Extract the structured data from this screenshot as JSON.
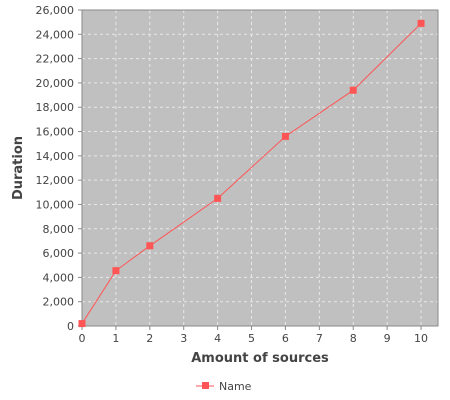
{
  "chart_data": {
    "type": "line",
    "title": "",
    "xlabel": "Amount of sources",
    "ylabel": "Duration",
    "xlim": [
      0,
      10.5
    ],
    "ylim": [
      0,
      26000
    ],
    "x_ticks": [
      0,
      1,
      2,
      3,
      4,
      5,
      6,
      7,
      8,
      9,
      10
    ],
    "y_ticks": [
      0,
      2000,
      4000,
      6000,
      8000,
      10000,
      12000,
      14000,
      16000,
      18000,
      20000,
      22000,
      24000,
      26000
    ],
    "x_tick_labels": [
      "0",
      "1",
      "2",
      "3",
      "4",
      "5",
      "6",
      "7",
      "8",
      "9",
      "10"
    ],
    "y_tick_labels": [
      "0",
      "2,000",
      "4,000",
      "6,000",
      "8,000",
      "10,000",
      "12,000",
      "14,000",
      "16,000",
      "18,000",
      "20,000",
      "22,000",
      "24,000",
      "26,000"
    ],
    "grid": true,
    "legend_position": "bottom",
    "series": [
      {
        "name": "Name",
        "color": "#ff5555",
        "marker": "square",
        "x": [
          0,
          1,
          2,
          4,
          6,
          8,
          10
        ],
        "y": [
          200,
          4550,
          6600,
          10500,
          15600,
          19400,
          24900
        ]
      }
    ]
  },
  "colors": {
    "plot_background": "#c0c0c0",
    "grid": "#e8e8e8",
    "axis": "#888888",
    "text": "#444444"
  }
}
